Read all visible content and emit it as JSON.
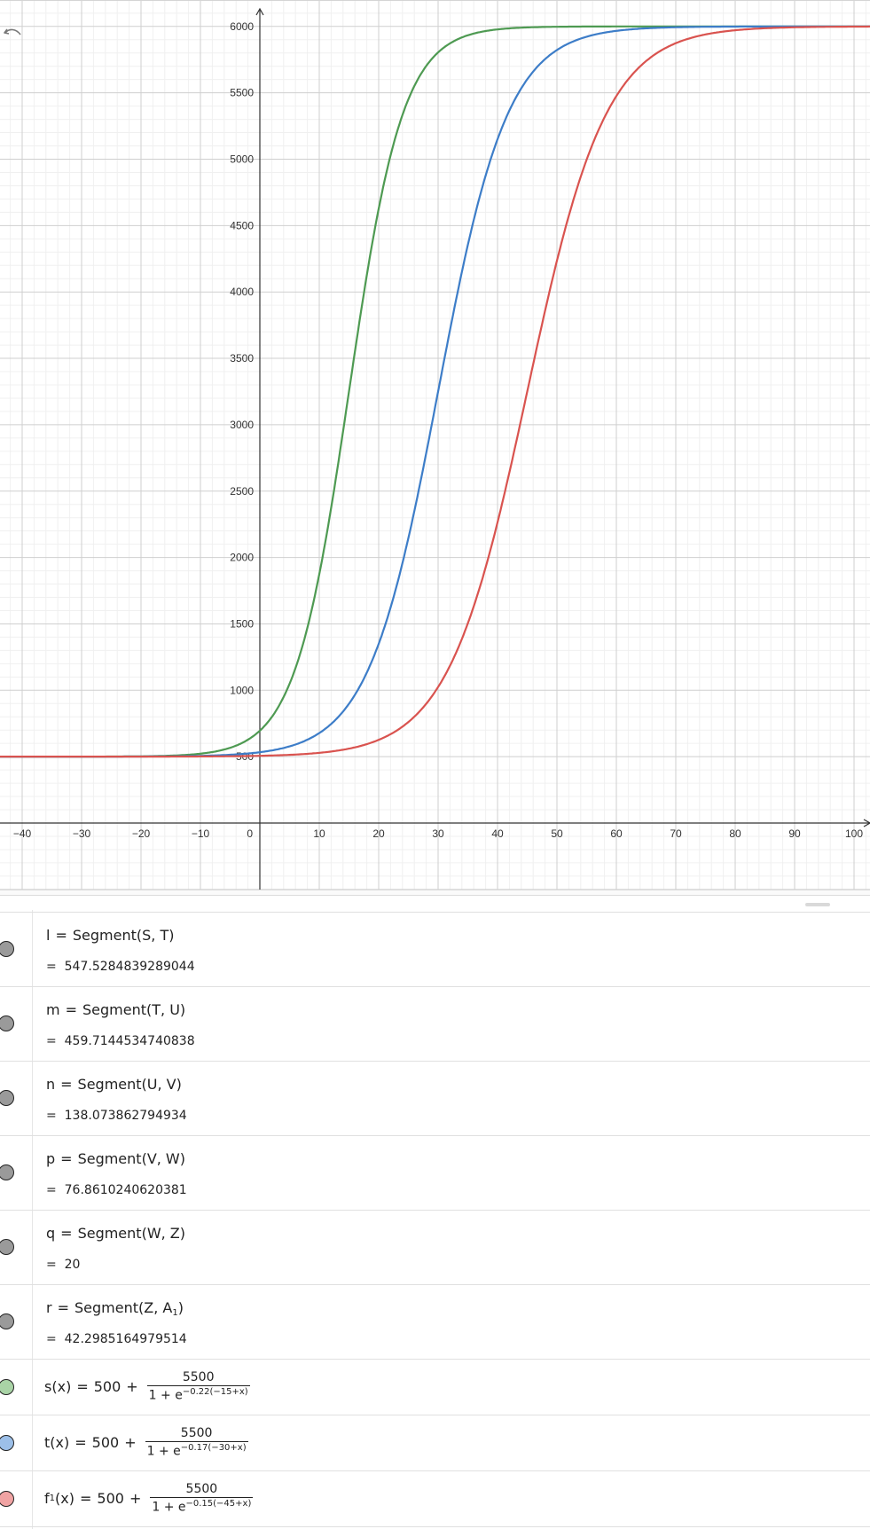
{
  "graph": {
    "x_ticks": [
      "−40",
      "−30",
      "−20",
      "−10",
      "0",
      "10",
      "20",
      "30",
      "40",
      "50",
      "60",
      "70",
      "80",
      "90",
      "100"
    ],
    "y_ticks": [
      "500",
      "1000",
      "1500",
      "2000",
      "2500",
      "3000",
      "3500",
      "4000",
      "4500",
      "5000",
      "5500",
      "6000"
    ],
    "undo_icon": "undo-icon",
    "curves": [
      {
        "name": "s",
        "color": "#4e9a52",
        "base": 500,
        "amplitude": 5500,
        "rate": 0.22,
        "shift": 15
      },
      {
        "name": "t",
        "color": "#3d7dc8",
        "base": 500,
        "amplitude": 5500,
        "rate": 0.17,
        "shift": 30
      },
      {
        "name": "f1",
        "color": "#d9534f",
        "base": 500,
        "amplitude": 5500,
        "rate": 0.15,
        "shift": 45
      }
    ],
    "x_range": [
      -44,
      103
    ],
    "y_range": [
      -520,
      6140
    ]
  },
  "algebra": {
    "segments": [
      {
        "name": "l",
        "command": "Segment",
        "args": "S, T",
        "value": "547.5284839289044",
        "dot_color": "#9a9a9a"
      },
      {
        "name": "m",
        "command": "Segment",
        "args": "T, U",
        "value": "459.7144534740838",
        "dot_color": "#9a9a9a"
      },
      {
        "name": "n",
        "command": "Segment",
        "args": "U, V",
        "value": "138.073862794934",
        "dot_color": "#9a9a9a"
      },
      {
        "name": "p",
        "command": "Segment",
        "args": "V, W",
        "value": "76.8610240620381",
        "dot_color": "#9a9a9a"
      },
      {
        "name": "q",
        "command": "Segment",
        "args": "W, Z",
        "value": "20",
        "dot_color": "#9a9a9a"
      },
      {
        "name": "r",
        "command": "Segment",
        "args": "Z, A",
        "args_sub": "1",
        "value": "42.2985164979514",
        "dot_color": "#9a9a9a"
      }
    ],
    "functions": [
      {
        "name": "s",
        "name_sub": "",
        "var": "x",
        "base": "500",
        "num": "5500",
        "den_base": "1 + e",
        "exp": "−0.22(−15+x)",
        "dot_color": "#a9d3a6"
      },
      {
        "name": "t",
        "name_sub": "",
        "var": "x",
        "base": "500",
        "num": "5500",
        "den_base": "1 + e",
        "exp": "−0.17(−30+x)",
        "dot_color": "#9cbfe8"
      },
      {
        "name": "f",
        "name_sub": "1",
        "var": "x",
        "base": "500",
        "num": "5500",
        "den_base": "1 + e",
        "exp": "−0.15(−45+x)",
        "dot_color": "#f0a3a3"
      }
    ],
    "eq_sign": "=",
    "plus_sign": "+"
  }
}
